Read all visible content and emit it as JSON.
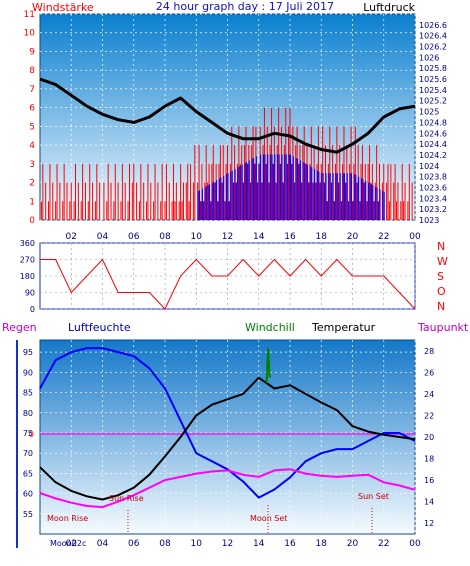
{
  "colors": {
    "red": "#ff0000",
    "blue": "#0000ff",
    "black": "#000000",
    "magenta": "#ff00ff",
    "green": "#008000",
    "navy": "#000080",
    "plot_top": "#0a7fcf",
    "plot_bottom": "#f6fbff",
    "frame_blue": "#1530c8"
  },
  "chart_data": [
    {
      "type": "line",
      "title": "24 hour graph day : 17 Juli 2017",
      "left_label": "Windstärke",
      "right_label": "Luftdruck",
      "x_ticks": [
        "02",
        "04",
        "06",
        "08",
        "10",
        "12",
        "14",
        "16",
        "18",
        "20",
        "22",
        "00"
      ],
      "left_ticks": [
        "0",
        "1",
        "2",
        "3",
        "4",
        "5",
        "6",
        "7",
        "8",
        "9",
        "10",
        "11"
      ],
      "right_ticks": [
        "1023",
        "1023.2",
        "1023.4",
        "1023.6",
        "1023.8",
        "1024",
        "1024.2",
        "1024.4",
        "1024.6",
        "1024.8",
        "1025",
        "1025.2",
        "1025.4",
        "1025.6",
        "1025.8",
        "1026",
        "1026.2",
        "1026.4",
        "1026.6"
      ],
      "ylim_left": [
        0,
        11
      ],
      "ylim_right": [
        1023,
        1026.8
      ],
      "x_range_hours": [
        0,
        24
      ],
      "series": [
        {
          "name": "Luftdruck",
          "axis": "right",
          "color": "#000000",
          "x": [
            0,
            1,
            2,
            3,
            4,
            5,
            6,
            7,
            8,
            9,
            10,
            11,
            12,
            13,
            14,
            15,
            16,
            17,
            18,
            19,
            20,
            21,
            22,
            23,
            24
          ],
          "y": [
            1025.6,
            1025.5,
            1025.3,
            1025.1,
            1024.95,
            1024.85,
            1024.8,
            1024.9,
            1025.1,
            1025.25,
            1025.0,
            1024.8,
            1024.6,
            1024.5,
            1024.5,
            1024.6,
            1024.55,
            1024.4,
            1024.3,
            1024.25,
            1024.4,
            1024.6,
            1024.9,
            1025.05,
            1025.1
          ]
        },
        {
          "name": "Windstärke",
          "axis": "left",
          "color": "#ff0000",
          "x": [
            0,
            2,
            4,
            6,
            8,
            10,
            12,
            14,
            16,
            18,
            20,
            22,
            24
          ],
          "y": [
            1,
            1,
            1,
            1,
            1,
            2,
            3,
            4,
            4,
            3,
            3,
            2,
            1
          ]
        }
      ]
    },
    {
      "type": "line",
      "title": "",
      "x_ticks": [
        "02",
        "04",
        "06",
        "08",
        "10",
        "12",
        "14",
        "16",
        "18",
        "20",
        "22",
        "00"
      ],
      "left_ticks": [
        "0",
        "90",
        "180",
        "270",
        "360"
      ],
      "direction_letters": [
        "N",
        "W",
        "S",
        "O",
        "N"
      ],
      "ylim": [
        0,
        360
      ],
      "series": [
        {
          "name": "Windrichtung",
          "color": "#ff0000",
          "x": [
            0,
            1,
            2,
            3,
            4,
            5,
            6,
            7,
            8,
            9,
            10,
            11,
            12,
            13,
            14,
            15,
            16,
            17,
            18,
            19,
            20,
            21,
            22,
            23,
            24
          ],
          "y": [
            270,
            270,
            90,
            180,
            270,
            90,
            90,
            90,
            0,
            180,
            270,
            180,
            180,
            270,
            180,
            270,
            180,
            270,
            180,
            270,
            180,
            180,
            180,
            90,
            0
          ]
        }
      ]
    },
    {
      "type": "line",
      "title": "",
      "labels": {
        "regen": "Regen",
        "luftfeuchte": "Luftfeuchte",
        "windchill": "Windchill",
        "temperatur": "Temperatur",
        "taupunkt": "Taupunkt"
      },
      "zero_label": "0",
      "x_ticks": [
        "02",
        "04",
        "06",
        "08",
        "10",
        "12",
        "14",
        "16",
        "18",
        "20",
        "22",
        "00"
      ],
      "left_ticks": [
        "55",
        "60",
        "65",
        "70",
        "75",
        "80",
        "85",
        "90",
        "95"
      ],
      "right_ticks": [
        "12",
        "14",
        "16",
        "18",
        "20",
        "22",
        "24",
        "26",
        "28"
      ],
      "ylim_left": [
        50,
        98
      ],
      "ylim_right": [
        11,
        29
      ],
      "annotations": [
        "Sun Rise",
        "Sun Set",
        "Moon Rise",
        "Moon Set",
        "Moon02c"
      ],
      "series": [
        {
          "name": "Luftfeuchte",
          "axis": "left",
          "color": "#0000ff",
          "x": [
            0,
            1,
            2,
            3,
            4,
            5,
            6,
            7,
            8,
            9,
            10,
            11,
            12,
            13,
            14,
            15,
            16,
            17,
            18,
            19,
            20,
            21,
            22,
            23,
            24
          ],
          "y": [
            86,
            93,
            95,
            96,
            96,
            95,
            94,
            91,
            86,
            78,
            70,
            68,
            66,
            63,
            59,
            61,
            64,
            68,
            70,
            71,
            71,
            73,
            75,
            75,
            73
          ]
        },
        {
          "name": "Temperatur",
          "axis": "right",
          "color": "#000000",
          "x": [
            0,
            1,
            2,
            3,
            4,
            5,
            6,
            7,
            8,
            9,
            10,
            11,
            12,
            13,
            14,
            15,
            16,
            17,
            18,
            19,
            20,
            21,
            22,
            23,
            24
          ],
          "y": [
            17.2,
            15.8,
            15.0,
            14.5,
            14.2,
            14.6,
            15.3,
            16.5,
            18.2,
            20.0,
            22.0,
            23.0,
            23.5,
            24.0,
            25.5,
            24.5,
            24.8,
            24.0,
            23.2,
            22.5,
            21.0,
            20.5,
            20.2,
            20.0,
            19.8
          ]
        },
        {
          "name": "Taupunkt",
          "axis": "right",
          "color": "#ff00ff",
          "x": [
            0,
            1,
            2,
            3,
            4,
            5,
            6,
            7,
            8,
            9,
            10,
            11,
            12,
            13,
            14,
            15,
            16,
            17,
            18,
            19,
            20,
            21,
            22,
            23,
            24
          ],
          "y": [
            14.8,
            14.3,
            13.9,
            13.6,
            13.5,
            14.0,
            14.6,
            15.3,
            16.0,
            16.3,
            16.6,
            16.8,
            16.9,
            16.5,
            16.3,
            16.9,
            17.0,
            16.6,
            16.4,
            16.3,
            16.4,
            16.5,
            15.8,
            15.5,
            15.1
          ]
        },
        {
          "name": "Windchill",
          "axis": "right",
          "color": "#008000",
          "x": [
            14.5,
            14.6,
            14.7
          ],
          "y": [
            25.0,
            28.2,
            25.5
          ]
        }
      ]
    }
  ]
}
